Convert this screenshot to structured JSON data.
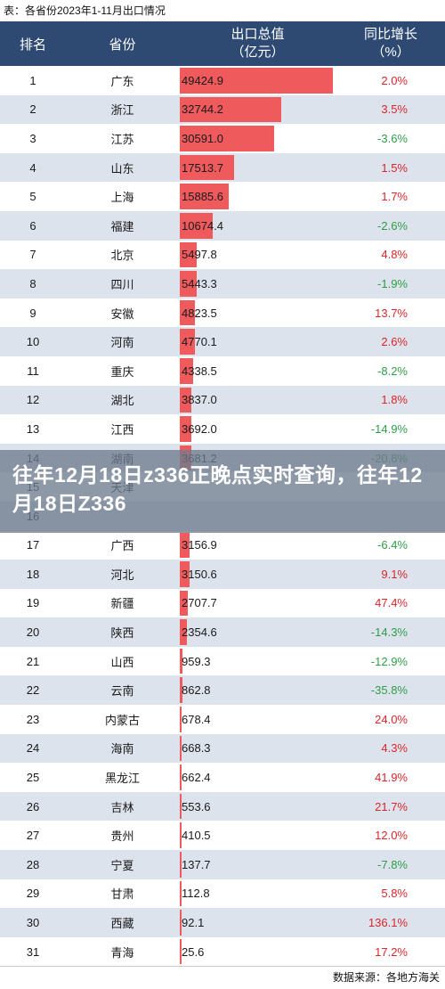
{
  "caption": "表：各省份2023年1-11月出口情况",
  "header": {
    "rank": "排名",
    "province": "省份",
    "value_line1": "出口总值",
    "value_line2": "（亿元）",
    "growth_line1": "同比增长",
    "growth_line2": "（%）"
  },
  "overlay_text": "往年12月18日z336正晚点实时查询，往年12月18日Z336",
  "source": "数据来源：各地方海关",
  "colors": {
    "header": "#2e4a73",
    "bar": "#ef5a5d",
    "positive": "#d9262b",
    "negative": "#2e9e48",
    "stripe": "#dde3ec"
  },
  "chart_data": {
    "type": "bar",
    "max_value": 49424.9,
    "rows": [
      {
        "rank": "1",
        "province": "广东",
        "value": "49424.9",
        "growth": "2.0%"
      },
      {
        "rank": "2",
        "province": "浙江",
        "value": "32744.2",
        "growth": "3.5%"
      },
      {
        "rank": "3",
        "province": "江苏",
        "value": "30591.0",
        "growth": "-3.6%"
      },
      {
        "rank": "4",
        "province": "山东",
        "value": "17513.7",
        "growth": "1.5%"
      },
      {
        "rank": "5",
        "province": "上海",
        "value": "15885.6",
        "growth": "1.7%"
      },
      {
        "rank": "6",
        "province": "福建",
        "value": "10674.4",
        "growth": "-2.6%"
      },
      {
        "rank": "7",
        "province": "北京",
        "value": "5497.8",
        "growth": "4.8%"
      },
      {
        "rank": "8",
        "province": "四川",
        "value": "5443.3",
        "growth": "-1.9%"
      },
      {
        "rank": "9",
        "province": "安徽",
        "value": "4823.5",
        "growth": "13.7%"
      },
      {
        "rank": "10",
        "province": "河南",
        "value": "4770.1",
        "growth": "2.6%"
      },
      {
        "rank": "11",
        "province": "重庆",
        "value": "4338.5",
        "growth": "-8.2%"
      },
      {
        "rank": "12",
        "province": "湖北",
        "value": "3837.0",
        "growth": "1.8%"
      },
      {
        "rank": "13",
        "province": "江西",
        "value": "3692.0",
        "growth": "-14.9%"
      },
      {
        "rank": "14",
        "province": "湖南",
        "value": "3681.2",
        "growth": "-20.8%"
      },
      {
        "rank": "15",
        "province": "天津",
        "value": "",
        "growth": ""
      },
      {
        "rank": "16",
        "province": "",
        "value": "",
        "growth": ""
      },
      {
        "rank": "17",
        "province": "广西",
        "value": "3156.9",
        "growth": "-6.4%"
      },
      {
        "rank": "18",
        "province": "河北",
        "value": "3150.6",
        "growth": "9.1%"
      },
      {
        "rank": "19",
        "province": "新疆",
        "value": "2707.7",
        "growth": "47.4%"
      },
      {
        "rank": "20",
        "province": "陕西",
        "value": "2354.6",
        "growth": "-14.3%"
      },
      {
        "rank": "21",
        "province": "山西",
        "value": "959.3",
        "growth": "-12.9%"
      },
      {
        "rank": "22",
        "province": "云南",
        "value": "862.8",
        "growth": "-35.8%"
      },
      {
        "rank": "23",
        "province": "内蒙古",
        "value": "678.4",
        "growth": "24.0%"
      },
      {
        "rank": "24",
        "province": "海南",
        "value": "668.3",
        "growth": "4.3%"
      },
      {
        "rank": "25",
        "province": "黑龙江",
        "value": "662.4",
        "growth": "41.9%"
      },
      {
        "rank": "26",
        "province": "吉林",
        "value": "553.6",
        "growth": "21.7%"
      },
      {
        "rank": "27",
        "province": "贵州",
        "value": "410.5",
        "growth": "12.0%"
      },
      {
        "rank": "28",
        "province": "宁夏",
        "value": "137.7",
        "growth": "-7.8%"
      },
      {
        "rank": "29",
        "province": "甘肃",
        "value": "112.8",
        "growth": "5.8%"
      },
      {
        "rank": "30",
        "province": "西藏",
        "value": "92.1",
        "growth": "136.1%"
      },
      {
        "rank": "31",
        "province": "青海",
        "value": "25.6",
        "growth": "17.2%"
      }
    ]
  }
}
